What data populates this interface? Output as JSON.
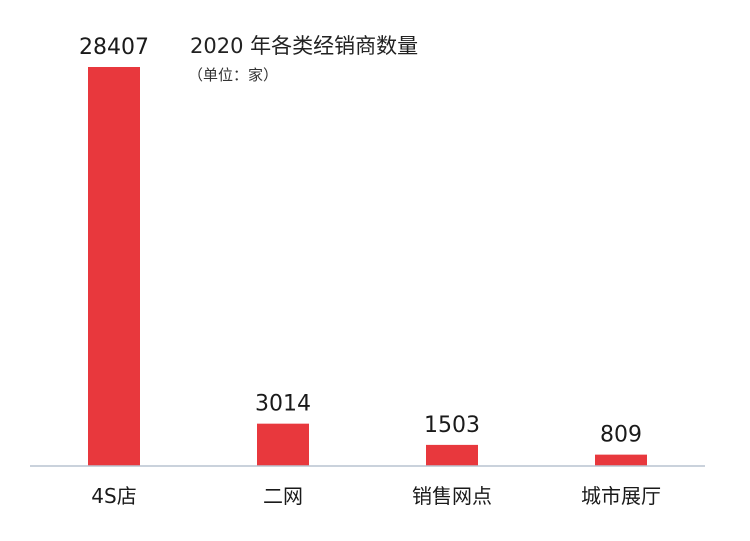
{
  "chart_data": {
    "type": "bar",
    "title": "2020 年各类经销商数量",
    "subtitle": "（单位：家）",
    "categories": [
      "4S店",
      "二网",
      "销售网点",
      "城市展厅"
    ],
    "values": [
      28407,
      3014,
      1503,
      809
    ],
    "xlabel": "",
    "ylabel": "",
    "ylim": [
      0,
      28407
    ],
    "grid": false,
    "legend": "none",
    "bar_color": "#e8383d",
    "axis_color": "#b8c4d0"
  }
}
